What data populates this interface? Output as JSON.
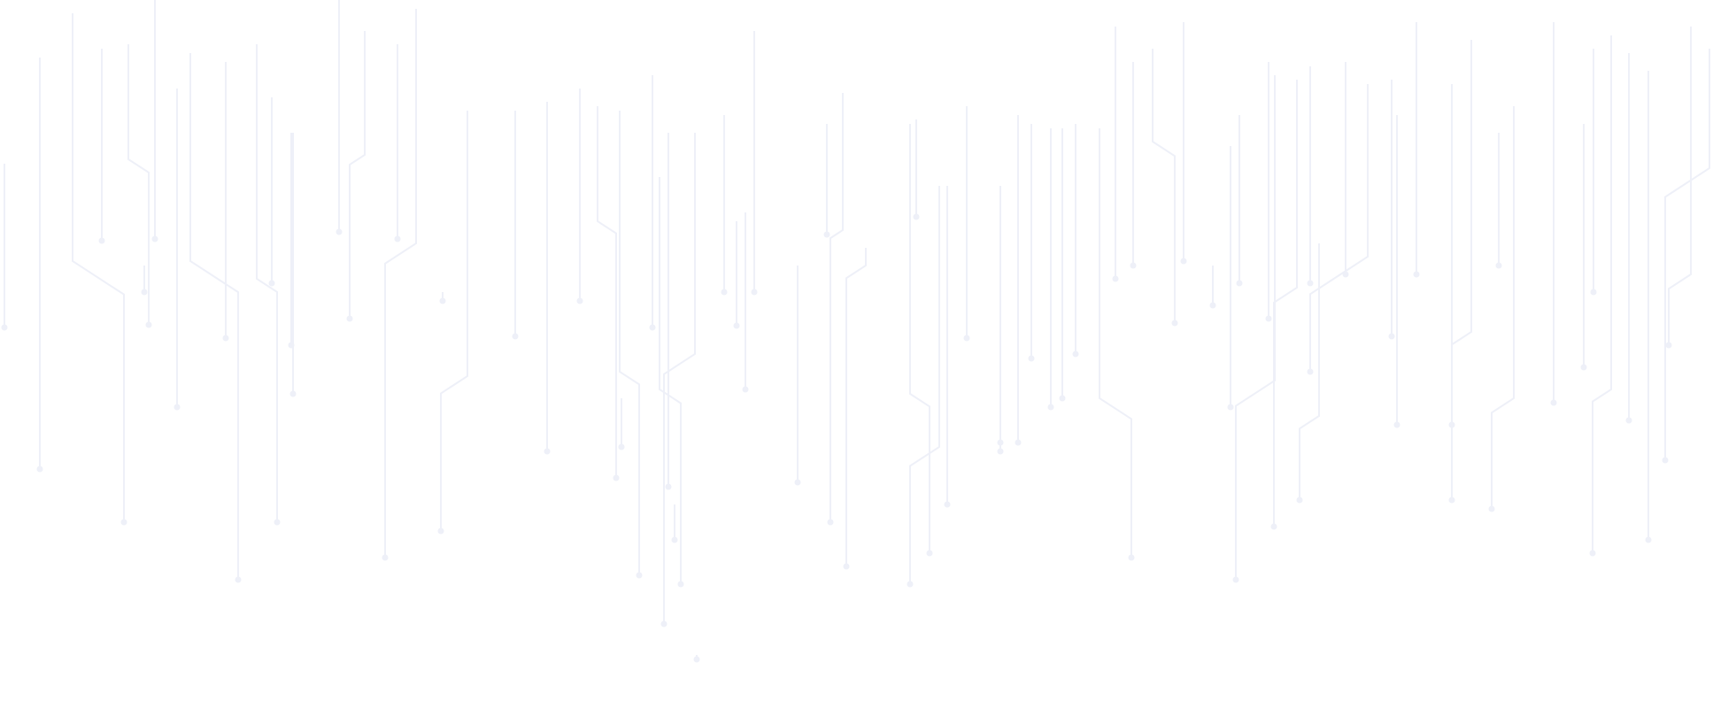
{
  "background": {
    "pattern": "circuit-lines",
    "background_color": "#ffffff",
    "line_color": "#eef0f8"
  }
}
